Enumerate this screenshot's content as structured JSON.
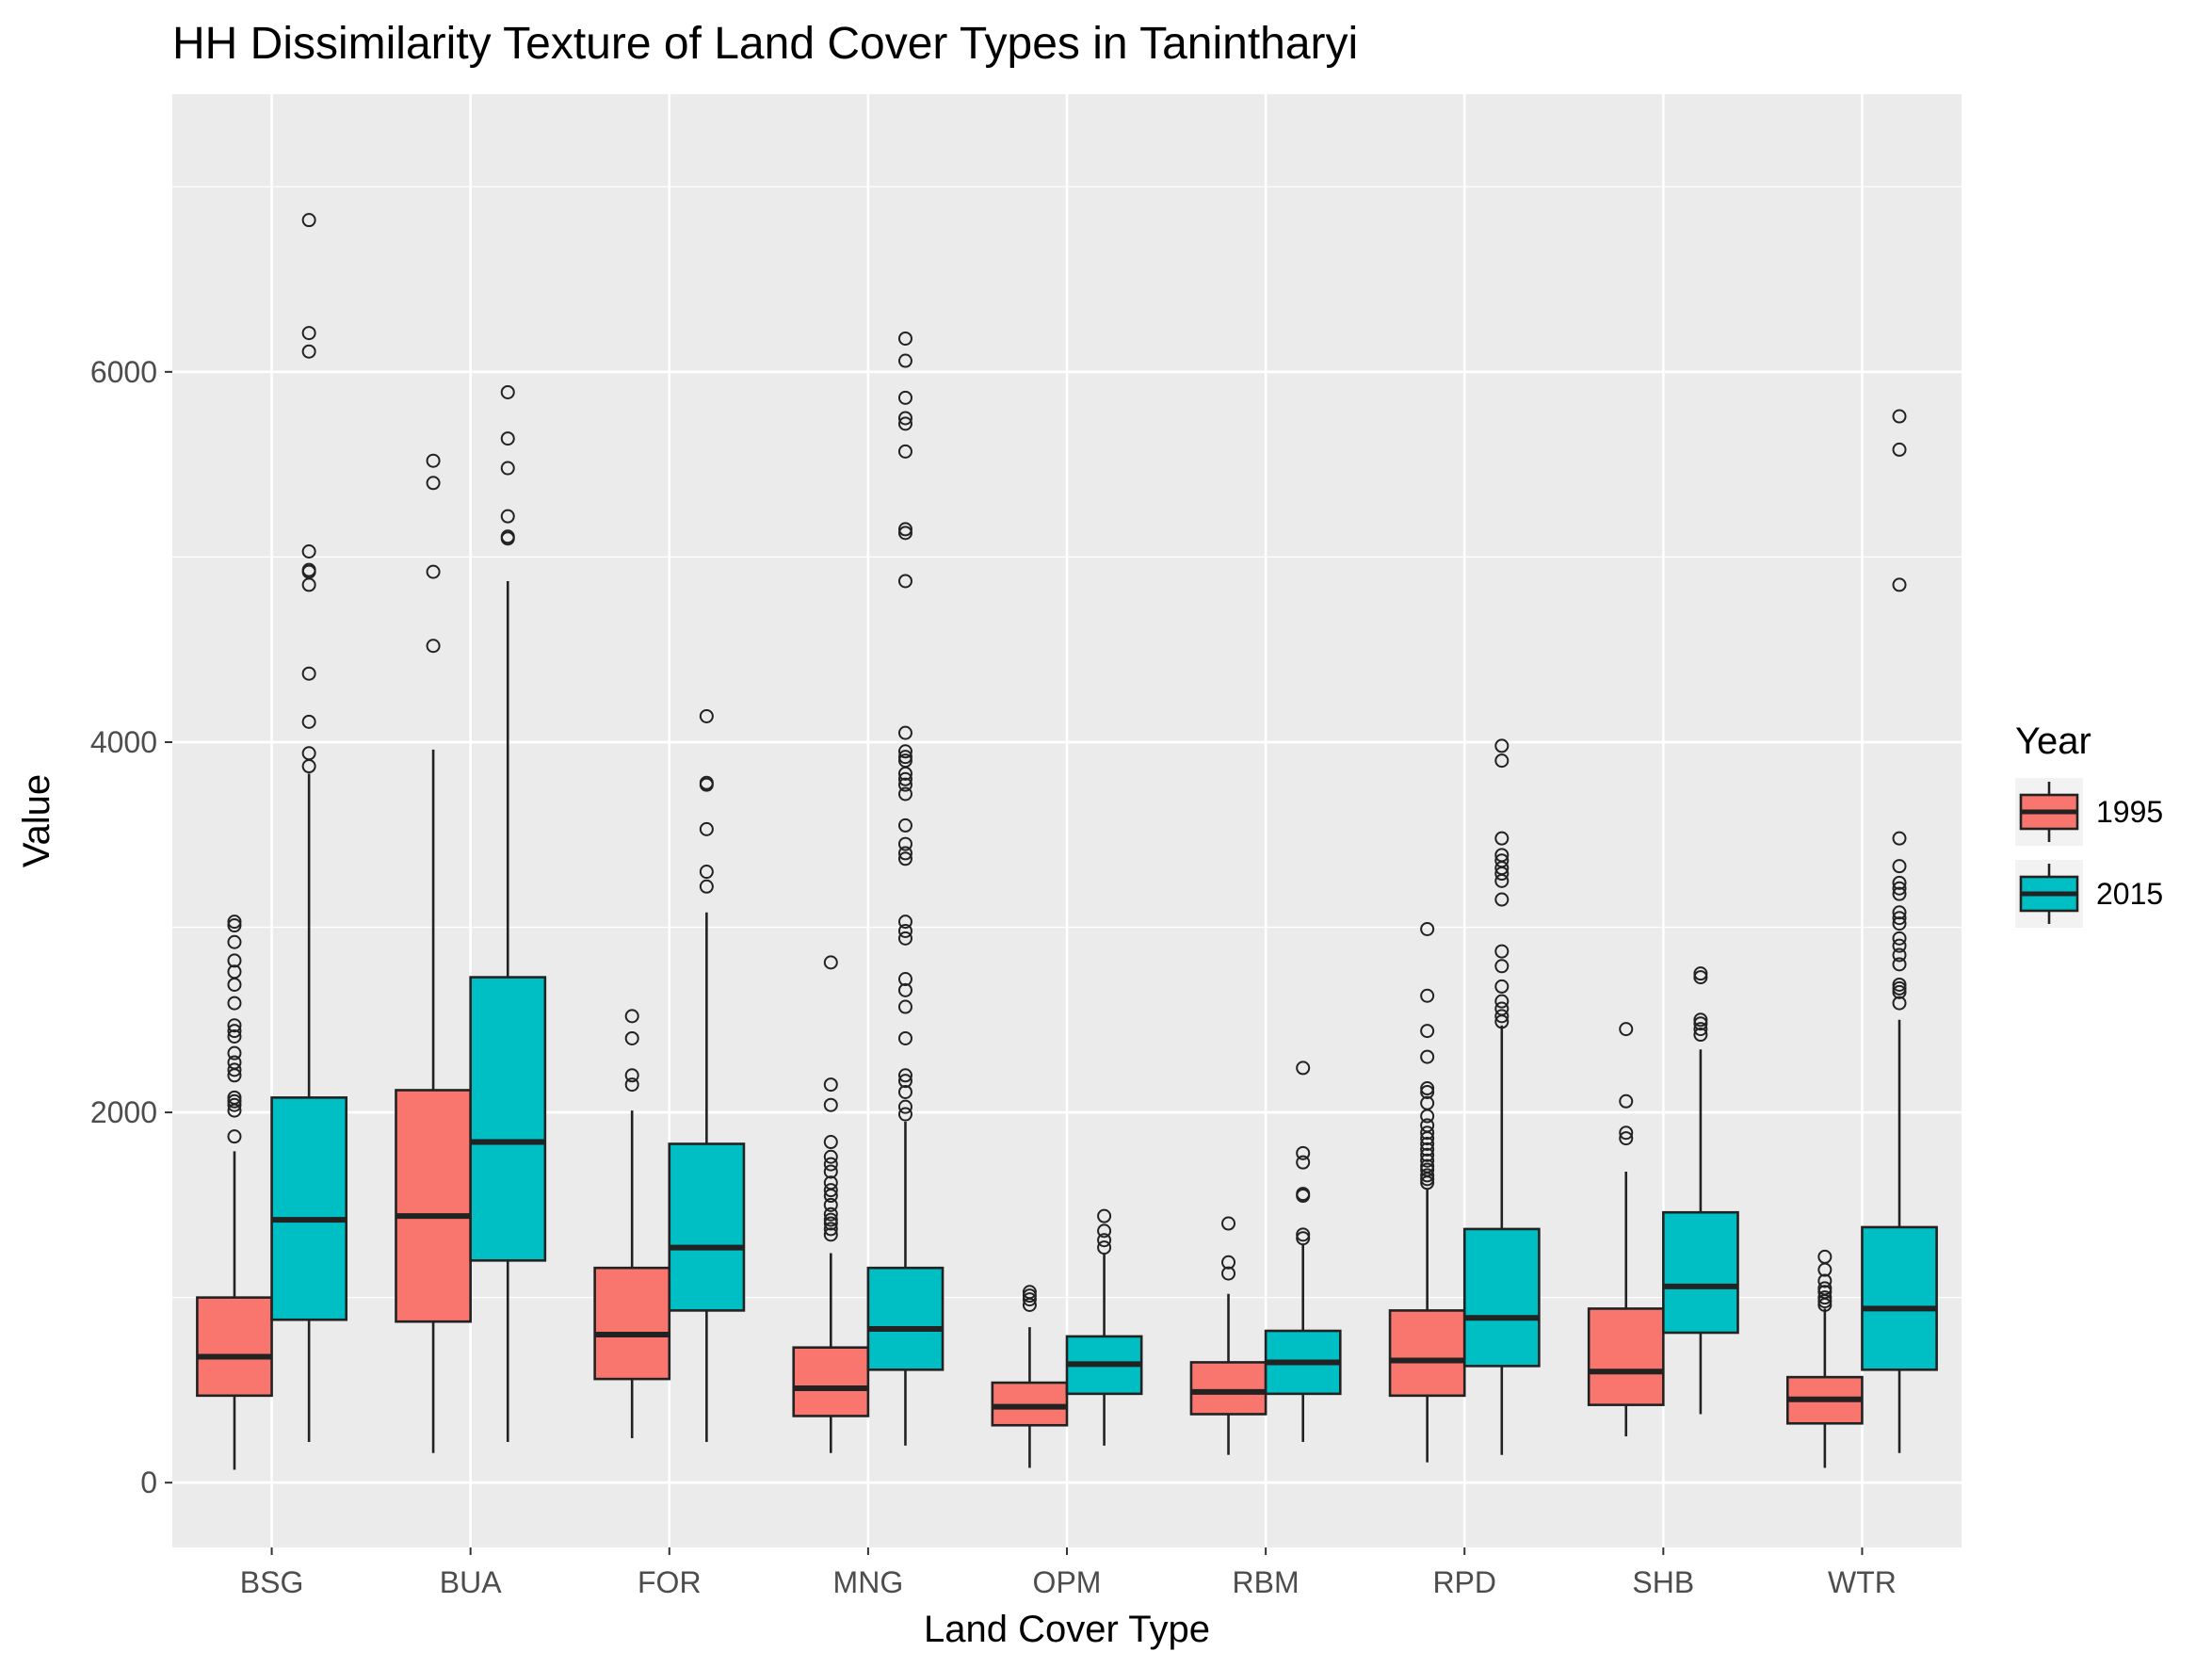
{
  "chart_data": {
    "type": "boxplot",
    "title": "HH Dissimilarity Texture of Land Cover Types in Tanintharyi",
    "xlabel": "Land Cover Type",
    "ylabel": "Value",
    "ylim": [
      -350,
      7500
    ],
    "yticks": [
      0,
      2000,
      4000,
      6000
    ],
    "ytick_labels": [
      "0",
      "2000",
      "4000",
      "6000"
    ],
    "categories": [
      "BSG",
      "BUA",
      "FOR",
      "MNG",
      "OPM",
      "RBM",
      "RPD",
      "SHB",
      "WTR"
    ],
    "grid": true,
    "legend": {
      "title": "Year",
      "placement": "right",
      "entries": [
        {
          "label": "1995",
          "color": "#F8766D"
        },
        {
          "label": "2015",
          "color": "#00BFC4"
        }
      ]
    },
    "series": [
      {
        "name": "1995",
        "color": "#F8766D",
        "boxes": [
          {
            "category": "BSG",
            "min": 70,
            "q1": 470,
            "median": 680,
            "q3": 1000,
            "max": 1790,
            "outliers": [
              1870,
              2010,
              2040,
              2060,
              2080,
              2200,
              2230,
              2270,
              2320,
              2410,
              2440,
              2470,
              2590,
              2690,
              2760,
              2820,
              2920,
              3010,
              3030
            ]
          },
          {
            "category": "BUA",
            "min": 160,
            "q1": 870,
            "median": 1440,
            "q3": 2120,
            "max": 3960,
            "outliers": [
              4520,
              4920,
              5400,
              5520
            ]
          },
          {
            "category": "FOR",
            "min": 240,
            "q1": 560,
            "median": 800,
            "q3": 1160,
            "max": 2010,
            "outliers": [
              2150,
              2200,
              2400,
              2520
            ]
          },
          {
            "category": "MNG",
            "min": 160,
            "q1": 360,
            "median": 510,
            "q3": 730,
            "max": 1240,
            "outliers": [
              1340,
              1370,
              1400,
              1420,
              1450,
              1500,
              1550,
              1580,
              1620,
              1680,
              1720,
              1760,
              1840,
              2040,
              2150,
              2810
            ]
          },
          {
            "category": "OPM",
            "min": 80,
            "q1": 310,
            "median": 410,
            "q3": 540,
            "max": 840,
            "outliers": [
              960,
              990,
              1010,
              1030
            ]
          },
          {
            "category": "RBM",
            "min": 150,
            "q1": 370,
            "median": 490,
            "q3": 650,
            "max": 1020,
            "outliers": [
              1130,
              1190,
              1400
            ]
          },
          {
            "category": "RPD",
            "min": 110,
            "q1": 470,
            "median": 660,
            "q3": 930,
            "max": 1590,
            "outliers": [
              1620,
              1640,
              1660,
              1690,
              1710,
              1740,
              1770,
              1800,
              1830,
              1860,
              1890,
              1930,
              1980,
              2050,
              2110,
              2130,
              2300,
              2440,
              2630,
              2990
            ]
          },
          {
            "category": "SHB",
            "min": 250,
            "q1": 420,
            "median": 600,
            "q3": 940,
            "max": 1680,
            "outliers": [
              1860,
              1890,
              2060,
              2450
            ]
          },
          {
            "category": "WTR",
            "min": 80,
            "q1": 320,
            "median": 450,
            "q3": 570,
            "max": 940,
            "outliers": [
              960,
              980,
              1000,
              1030,
              1050,
              1090,
              1150,
              1220
            ]
          }
        ]
      },
      {
        "name": "2015",
        "color": "#00BFC4",
        "boxes": [
          {
            "category": "BSG",
            "min": 220,
            "q1": 880,
            "median": 1420,
            "q3": 2080,
            "max": 3830,
            "outliers": [
              3870,
              3940,
              4110,
              4370,
              4850,
              4920,
              4930,
              5030,
              6110,
              6210,
              6820
            ]
          },
          {
            "category": "BUA",
            "min": 220,
            "q1": 1200,
            "median": 1840,
            "q3": 2730,
            "max": 4870,
            "outliers": [
              5100,
              5110,
              5220,
              5480,
              5640,
              5890
            ]
          },
          {
            "category": "FOR",
            "min": 220,
            "q1": 930,
            "median": 1270,
            "q3": 1830,
            "max": 3080,
            "outliers": [
              3220,
              3300,
              3530,
              3770,
              3780,
              4140
            ]
          },
          {
            "category": "MNG",
            "min": 200,
            "q1": 610,
            "median": 830,
            "q3": 1160,
            "max": 1950,
            "outliers": [
              1990,
              2030,
              2110,
              2170,
              2200,
              2400,
              2570,
              2660,
              2720,
              2940,
              2980,
              3030,
              3370,
              3400,
              3450,
              3550,
              3720,
              3770,
              3800,
              3830,
              3900,
              3920,
              3950,
              4050,
              4870,
              5130,
              5150,
              5570,
              5720,
              5750,
              5860,
              6060,
              6180
            ]
          },
          {
            "category": "OPM",
            "min": 200,
            "q1": 480,
            "median": 640,
            "q3": 790,
            "max": 1240,
            "outliers": [
              1270,
              1310,
              1360,
              1440
            ]
          },
          {
            "category": "RBM",
            "min": 220,
            "q1": 480,
            "median": 650,
            "q3": 820,
            "max": 1290,
            "outliers": [
              1320,
              1340,
              1550,
              1560,
              1730,
              1780,
              2240
            ]
          },
          {
            "category": "RPD",
            "min": 150,
            "q1": 630,
            "median": 890,
            "q3": 1370,
            "max": 2470,
            "outliers": [
              2490,
              2520,
              2560,
              2600,
              2680,
              2790,
              2870,
              3150,
              3250,
              3290,
              3320,
              3360,
              3390,
              3480,
              3900,
              3980
            ]
          },
          {
            "category": "SHB",
            "min": 370,
            "q1": 810,
            "median": 1060,
            "q3": 1460,
            "max": 2340,
            "outliers": [
              2420,
              2450,
              2480,
              2500,
              2730,
              2750
            ]
          },
          {
            "category": "WTR",
            "min": 160,
            "q1": 610,
            "median": 940,
            "q3": 1380,
            "max": 2500,
            "outliers": [
              2590,
              2650,
              2670,
              2690,
              2800,
              2850,
              2900,
              2940,
              3020,
              3050,
              3080,
              3180,
              3210,
              3240,
              3330,
              3480,
              4850,
              5580,
              5760
            ]
          }
        ]
      }
    ]
  }
}
